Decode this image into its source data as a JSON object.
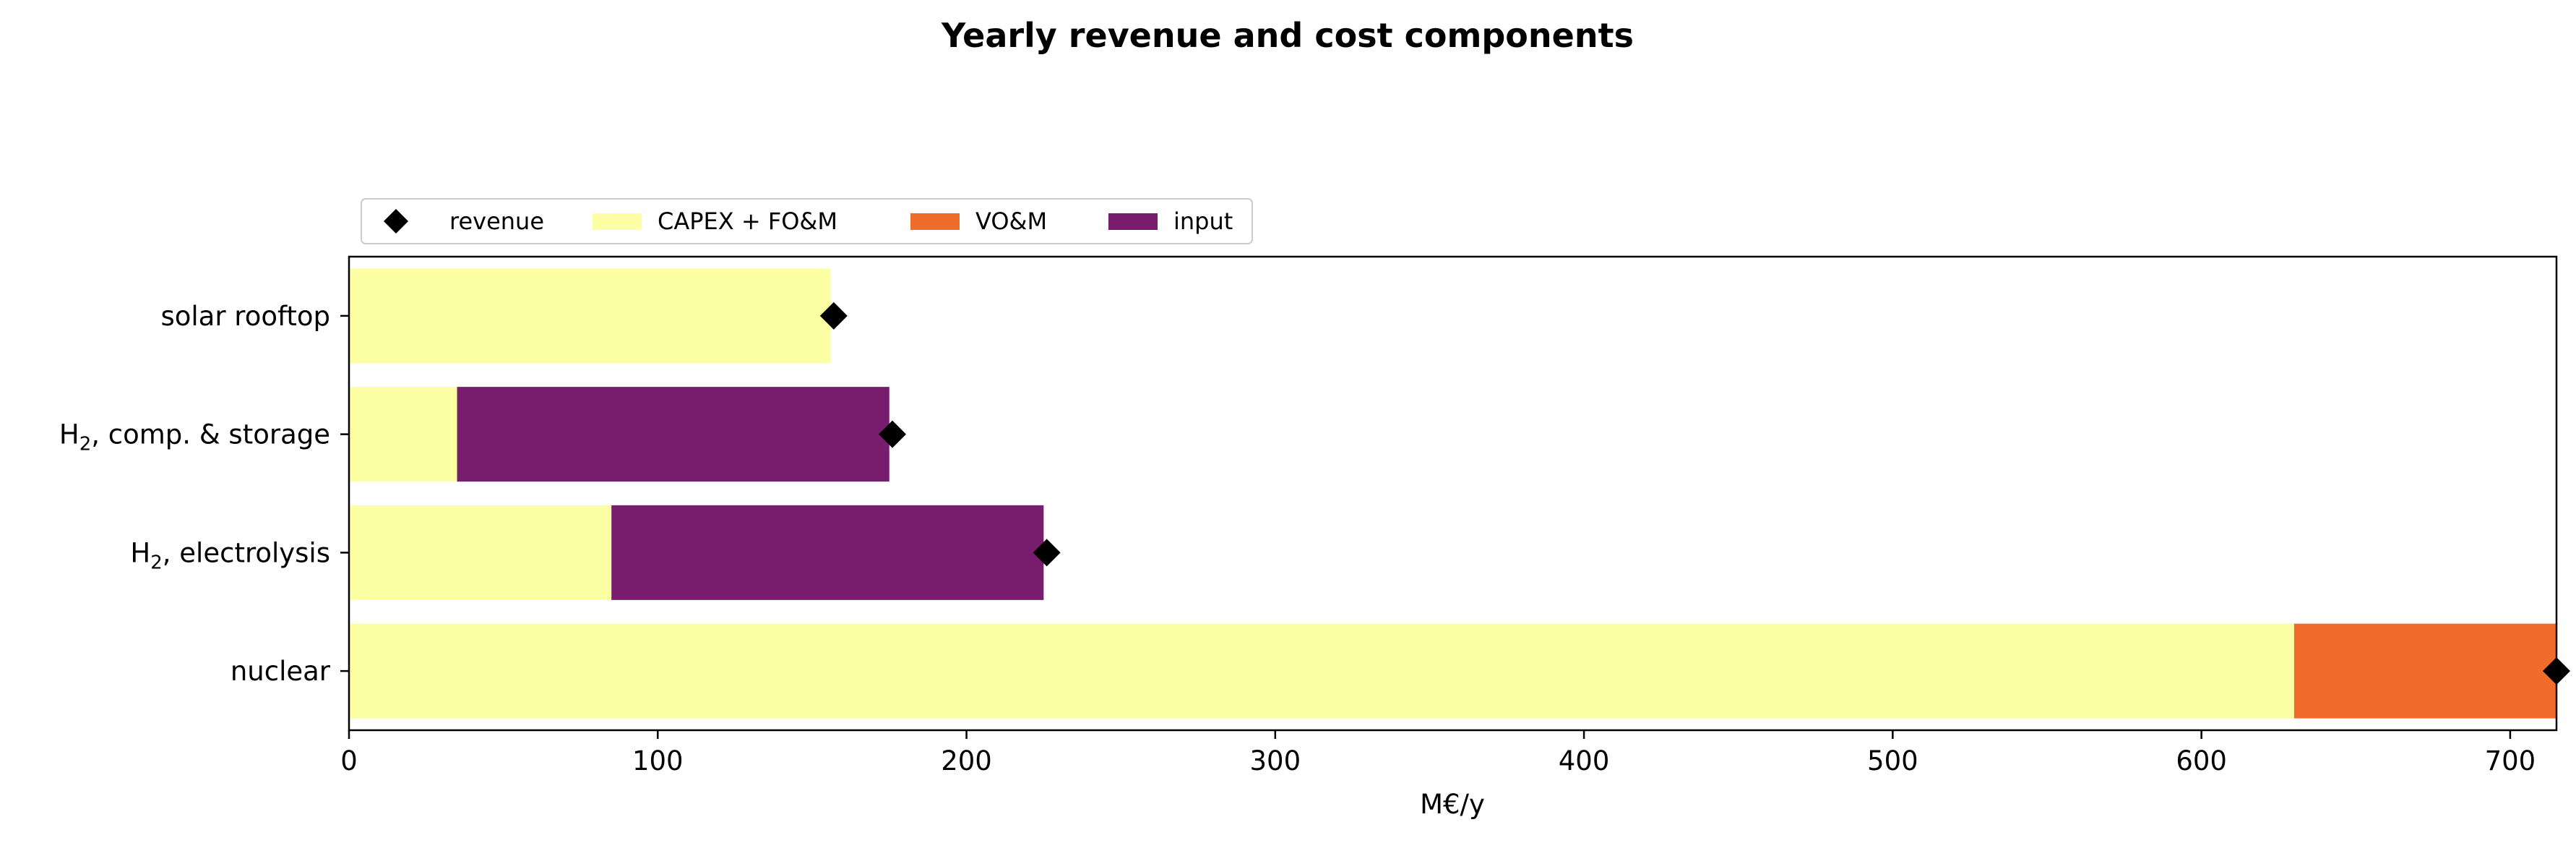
{
  "chart_data": {
    "type": "bar",
    "orientation": "horizontal",
    "stacked": true,
    "title": "Yearly revenue and cost components",
    "xlabel": "M€/y",
    "ylabel": "",
    "xlim": [
      0,
      715
    ],
    "x_ticks": [
      0,
      100,
      200,
      300,
      400,
      500,
      600,
      700
    ],
    "categories": [
      {
        "label": "solar rooftop",
        "base": "",
        "sub": "",
        "rest": ""
      },
      {
        "label": "",
        "base": "H",
        "sub": "2",
        "rest": ", comp. & storage"
      },
      {
        "label": "",
        "base": "H",
        "sub": "2",
        "rest": ", electrolysis"
      },
      {
        "label": "nuclear",
        "base": "",
        "sub": "",
        "rest": ""
      }
    ],
    "series": [
      {
        "name": "CAPEX + FO&M",
        "color": "#fcffa4",
        "values": [
          156,
          35,
          85,
          630
        ]
      },
      {
        "name": "VO&M",
        "color": "#f06c2a",
        "values": [
          0,
          0,
          0,
          85
        ]
      },
      {
        "name": "input",
        "color": "#781c6d",
        "values": [
          0,
          140,
          140,
          0
        ]
      }
    ],
    "markers": {
      "name": "revenue",
      "shape": "diamond",
      "color": "#000000",
      "values": [
        157,
        176,
        226,
        715
      ]
    },
    "legend": {
      "placement": "top-left, above plot",
      "order": [
        "revenue",
        "CAPEX + FO&M",
        "VO&M",
        "input"
      ]
    },
    "grid": false
  }
}
